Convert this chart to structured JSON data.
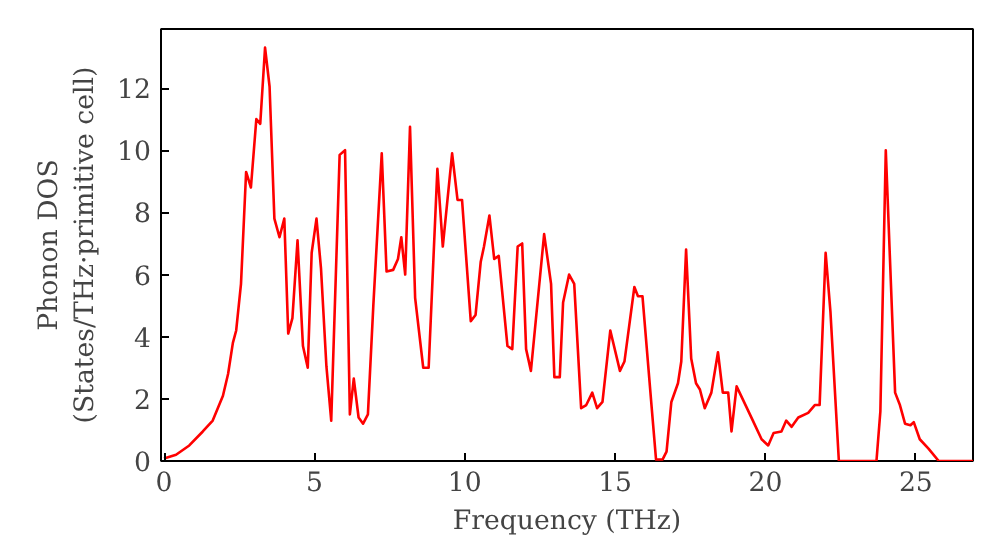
{
  "chart_data": {
    "type": "line",
    "xlabel": "Frequency (THz)",
    "ylabel": "Phonon DOS\n(States/THz·primitive cell)",
    "xlim": [
      -0.1,
      26.9
    ],
    "ylim": [
      0,
      13.9
    ],
    "xticks": [
      0,
      5,
      10,
      15,
      20,
      25
    ],
    "yticks": [
      0,
      2,
      4,
      6,
      8,
      10,
      12
    ],
    "line_style": "solid",
    "series": [
      {
        "color": "#ff0000",
        "x": [
          0,
          0.4,
          0.84,
          1.29,
          1.62,
          1.96,
          2.13,
          2.29,
          2.4,
          2.56,
          2.73,
          2.89,
          3.07,
          3.2,
          3.36,
          3.51,
          3.67,
          3.84,
          4.0,
          4.13,
          4.27,
          4.44,
          4.62,
          4.78,
          4.91,
          5.07,
          5.22,
          5.4,
          5.56,
          5.84,
          6.02,
          6.18,
          6.31,
          6.47,
          6.62,
          6.78,
          6.96,
          7.24,
          7.4,
          7.62,
          7.78,
          7.89,
          8.02,
          8.18,
          8.35,
          8.62,
          8.8,
          9.09,
          9.27,
          9.58,
          9.76,
          9.91,
          10.2,
          10.36,
          10.53,
          10.64,
          10.82,
          10.98,
          11.13,
          11.42,
          11.58,
          11.76,
          11.91,
          12.04,
          12.2,
          12.64,
          12.87,
          12.98,
          13.16,
          13.27,
          13.47,
          13.64,
          13.87,
          14.04,
          14.24,
          14.4,
          14.58,
          14.84,
          15.16,
          15.31,
          15.64,
          15.76,
          15.91,
          16.2,
          16.36,
          16.58,
          16.71,
          16.87,
          17.09,
          17.2,
          17.36,
          17.53,
          17.69,
          17.82,
          17.98,
          18.2,
          18.42,
          18.58,
          18.76,
          18.87,
          19.04,
          19.36,
          19.58,
          19.87,
          20.09,
          20.27,
          20.53,
          20.69,
          20.87,
          21.09,
          21.42,
          21.64,
          21.8,
          22.0,
          22.16,
          22.44,
          23.69,
          23.82,
          24.0,
          24.31,
          24.47,
          24.64,
          24.82,
          24.93,
          25.13,
          25.42,
          25.76,
          26.9
        ],
        "values": [
          0.08,
          0.2,
          0.5,
          0.95,
          1.3,
          2.1,
          2.8,
          3.8,
          4.2,
          5.7,
          9.3,
          8.8,
          11.0,
          10.85,
          13.3,
          12.05,
          7.8,
          7.2,
          7.8,
          4.1,
          4.6,
          7.1,
          3.7,
          3.0,
          6.7,
          7.8,
          6.2,
          3.05,
          1.3,
          9.85,
          10.0,
          1.5,
          2.65,
          1.4,
          1.2,
          1.5,
          5.0,
          9.9,
          6.1,
          6.15,
          6.5,
          7.2,
          6.0,
          10.75,
          5.25,
          3.0,
          3.0,
          9.4,
          6.9,
          9.9,
          8.4,
          8.4,
          4.5,
          4.7,
          6.4,
          6.9,
          7.9,
          6.5,
          6.6,
          3.7,
          3.6,
          6.9,
          7.0,
          3.6,
          2.9,
          7.3,
          5.7,
          2.7,
          2.7,
          5.1,
          6.0,
          5.7,
          1.7,
          1.8,
          2.2,
          1.7,
          1.9,
          4.2,
          2.9,
          3.2,
          5.6,
          5.3,
          5.3,
          1.9,
          0.05,
          0.05,
          0.3,
          1.9,
          2.5,
          3.2,
          6.8,
          3.3,
          2.5,
          2.3,
          1.7,
          2.2,
          3.5,
          2.2,
          2.2,
          0.95,
          2.4,
          1.75,
          1.3,
          0.7,
          0.5,
          0.9,
          0.95,
          1.3,
          1.1,
          1.4,
          1.55,
          1.8,
          1.8,
          6.7,
          4.8,
          0.0,
          0.0,
          1.6,
          10.0,
          2.2,
          1.8,
          1.2,
          1.15,
          1.25,
          0.7,
          0.4,
          0.0,
          0.0
        ]
      }
    ]
  }
}
